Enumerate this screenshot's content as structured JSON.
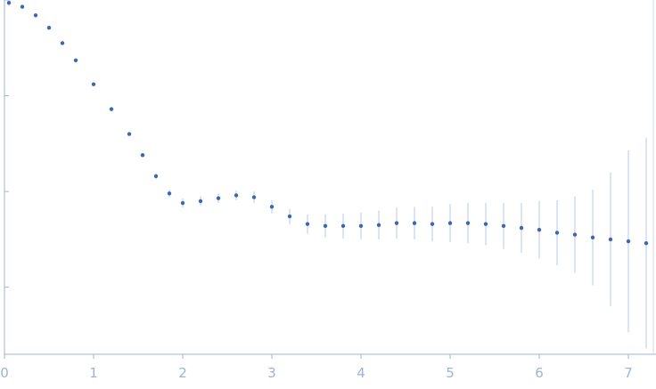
{
  "chart_data": {
    "type": "scatter",
    "title": "",
    "xlabel": "",
    "ylabel": "",
    "xlim": [
      0,
      7.3
    ],
    "ylim": [
      -0.7,
      3.0
    ],
    "x_ticks": [
      0,
      1,
      2,
      3,
      4,
      5,
      6,
      7
    ],
    "x_tick_labels": [
      "0",
      "1",
      "2",
      "3",
      "4",
      "5",
      "6",
      "7"
    ],
    "y_ticks": [
      0,
      1,
      2,
      3
    ],
    "y_tick_labels": [
      "",
      "",
      "",
      ""
    ],
    "grid": false,
    "legend": "none",
    "colors": {
      "points": "#3b67b5",
      "error_bars": "#b8c8e6",
      "outliers": "#e0202a",
      "axis": "#9fb3d6"
    },
    "series": [
      {
        "x": [
          0.05,
          0.2,
          0.35,
          0.5,
          0.65,
          0.8,
          1.0,
          1.2,
          1.4,
          1.55,
          1.7,
          1.85,
          2.0,
          2.2,
          2.4,
          2.6,
          2.8,
          3.0,
          3.2,
          3.4,
          3.6,
          3.8,
          4.0,
          4.2,
          4.4,
          4.6,
          4.8,
          5.0,
          5.2,
          5.4,
          5.6,
          5.8,
          6.0,
          6.2,
          6.4,
          6.6,
          6.8,
          7.0,
          7.2
        ],
        "y": [
          2.97,
          2.93,
          2.84,
          2.71,
          2.55,
          2.37,
          2.12,
          1.86,
          1.6,
          1.38,
          1.16,
          0.98,
          0.88,
          0.9,
          0.93,
          0.96,
          0.94,
          0.84,
          0.74,
          0.66,
          0.64,
          0.64,
          0.64,
          0.65,
          0.67,
          0.67,
          0.66,
          0.67,
          0.67,
          0.66,
          0.64,
          0.62,
          0.6,
          0.57,
          0.55,
          0.52,
          0.5,
          0.48,
          0.46
        ],
        "y_err": [
          0.03,
          0.01,
          0.01,
          0.01,
          0.01,
          0.01,
          0.01,
          0.01,
          0.02,
          0.02,
          0.03,
          0.04,
          0.05,
          0.05,
          0.05,
          0.05,
          0.06,
          0.07,
          0.08,
          0.1,
          0.12,
          0.13,
          0.14,
          0.15,
          0.16,
          0.17,
          0.18,
          0.2,
          0.21,
          0.22,
          0.24,
          0.26,
          0.3,
          0.34,
          0.4,
          0.5,
          0.7,
          0.95,
          1.1
        ]
      }
    ]
  }
}
